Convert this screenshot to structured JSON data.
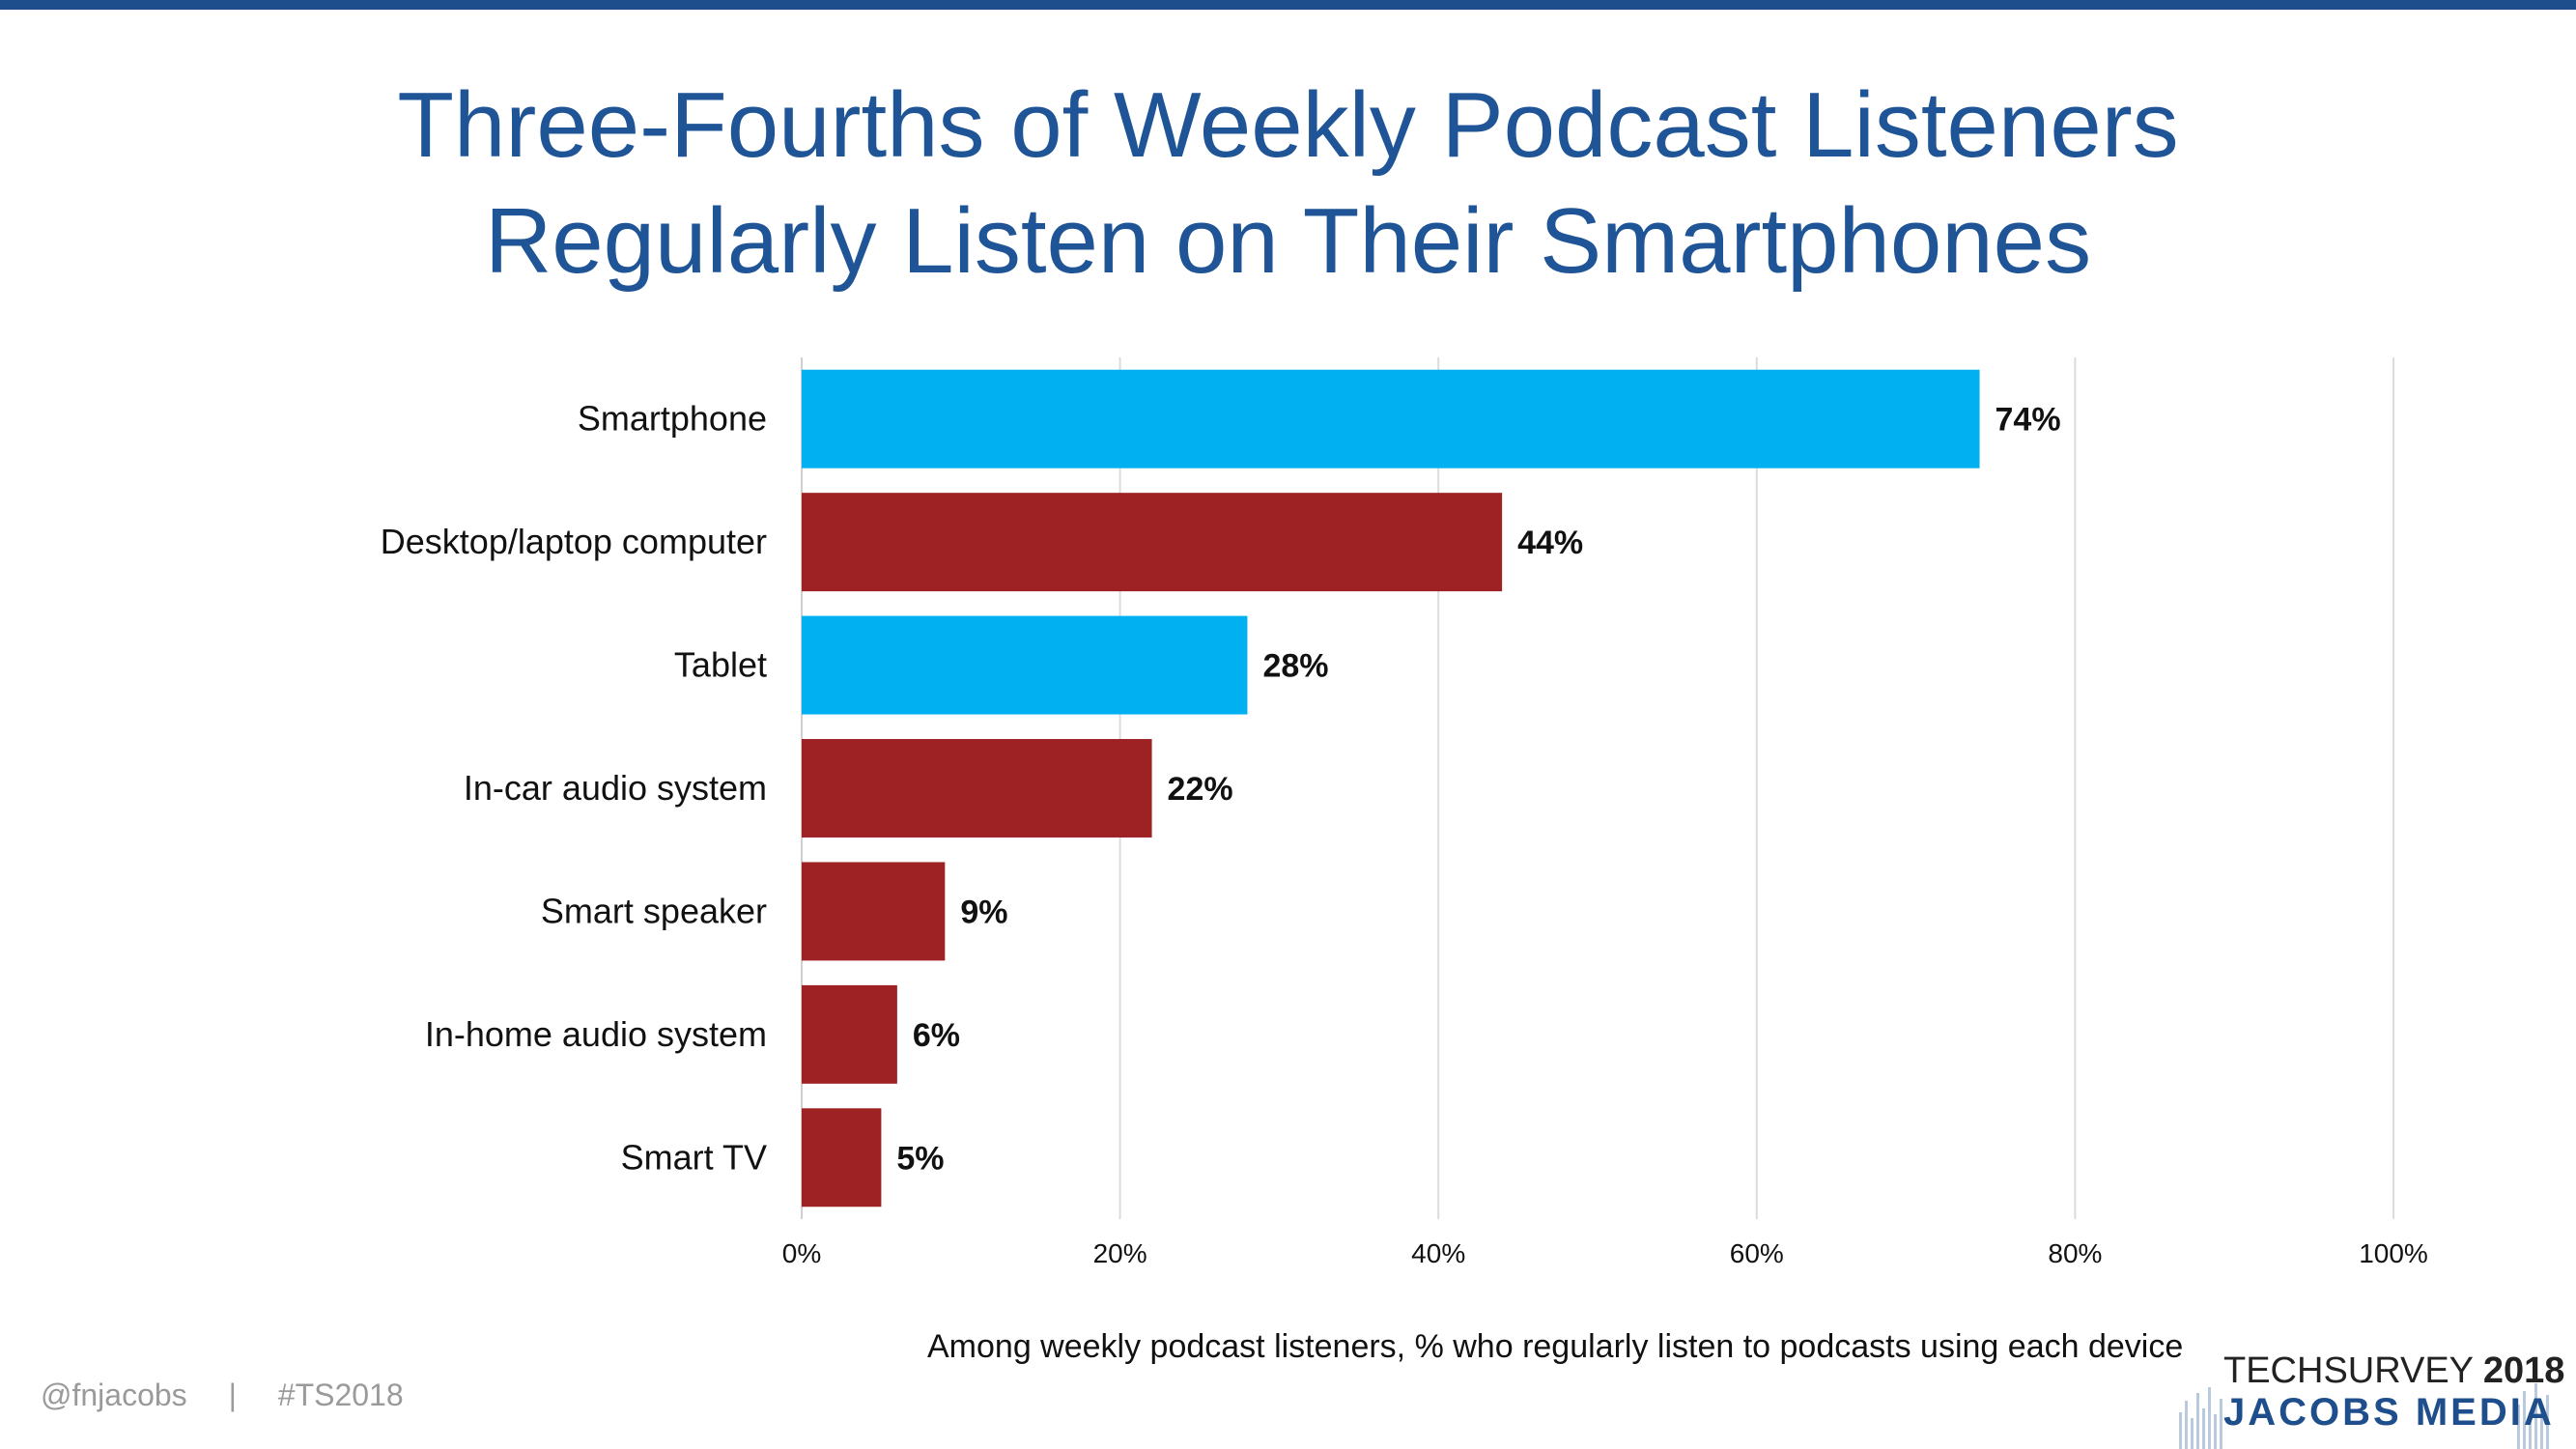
{
  "title": {
    "line1": "Three-Fourths of Weekly Podcast Listeners",
    "line2": "Regularly Listen on Their Smartphones"
  },
  "chart_data": {
    "type": "bar",
    "orientation": "horizontal",
    "categories": [
      "Smartphone",
      "Desktop/laptop computer",
      "Tablet",
      "In-car audio system",
      "Smart speaker",
      "In-home audio system",
      "Smart TV"
    ],
    "values": [
      74,
      44,
      28,
      22,
      9,
      6,
      5
    ],
    "value_labels": [
      "74%",
      "44%",
      "28%",
      "22%",
      "9%",
      "6%",
      "5%"
    ],
    "bar_colors": [
      "#00b0f0",
      "#9e2224",
      "#00b0f0",
      "#9e2224",
      "#9e2224",
      "#9e2224",
      "#9e2224"
    ],
    "xlim": [
      0,
      100
    ],
    "x_ticks": [
      0,
      20,
      40,
      60,
      80,
      100
    ],
    "x_tick_labels": [
      "0%",
      "20%",
      "40%",
      "60%",
      "80%",
      "100%"
    ],
    "grid": true,
    "xlabel": "Among weekly podcast listeners, % who regularly listen to podcasts using each device",
    "ylabel": ""
  },
  "caption": "Among weekly podcast listeners, % who regularly listen to podcasts using each device",
  "footer": {
    "handle": "@fnjacobs",
    "separator": "|",
    "hashtag": "#TS2018"
  },
  "logo": {
    "line1_prefix": "TECHSURVEY",
    "line1_year": "2018",
    "line2": "JACOBS MEDIA"
  },
  "colors": {
    "title": "#1f5596",
    "accent_blue": "#00b0f0",
    "accent_red": "#9e2224",
    "rule": "#1f4e8c"
  }
}
